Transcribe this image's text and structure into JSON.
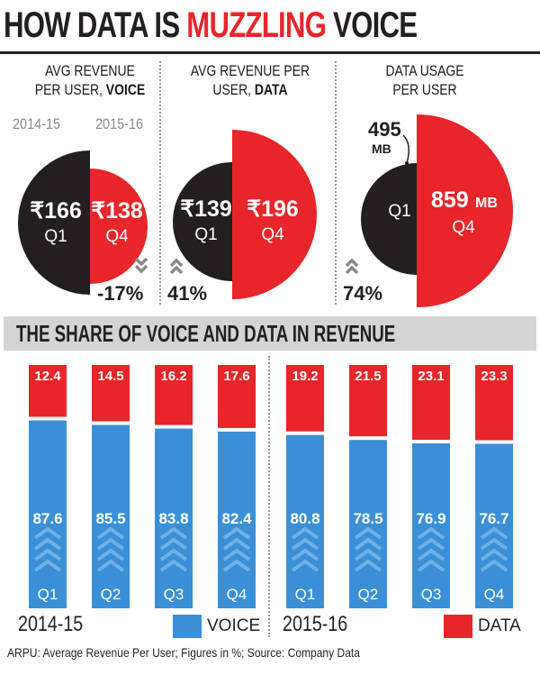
{
  "headline": {
    "part1": "HOW DATA IS ",
    "part2": "MUZZLING",
    "part3": " VOICE"
  },
  "colors": {
    "accent_red": "#e8252b",
    "dark": "#231f20",
    "voice_blue": "#3b8fd6",
    "gray_band": "#d4d4d4"
  },
  "panels": [
    {
      "title_line1": "AVG REVENUE",
      "title_line2a": "PER USER, ",
      "title_line2b": "VOICE",
      "q1_value": "₹166",
      "q1_label": "Q1",
      "q4_value": "₹138",
      "q4_label": "Q4",
      "change": "-17%",
      "direction": "down",
      "year_left": "2014-15",
      "year_right": "2015-16"
    },
    {
      "title_line1": "AVG REVENUE PER",
      "title_line2a": "USER, ",
      "title_line2b": "DATA",
      "q1_value": "₹139",
      "q1_label": "Q1",
      "q4_value": "₹196",
      "q4_label": "Q4",
      "change": "41%",
      "direction": "up"
    },
    {
      "title_line1": "DATA USAGE",
      "title_line2a": "PER USER",
      "title_line2b": "",
      "q1_value": "495",
      "q1_unit": "MB",
      "q1_label": "Q1",
      "q4_value": "859",
      "q4_unit": "MB",
      "q4_label": "Q4",
      "change": "74%",
      "direction": "up"
    }
  ],
  "section_title": "THE SHARE OF VOICE AND DATA IN REVENUE",
  "chart_data": {
    "type": "bar",
    "stacked": true,
    "categories": [
      "Q1",
      "Q2",
      "Q3",
      "Q4",
      "Q1",
      "Q2",
      "Q3",
      "Q4"
    ],
    "groups": [
      "2014-15",
      "2014-15",
      "2014-15",
      "2014-15",
      "2015-16",
      "2015-16",
      "2015-16",
      "2015-16"
    ],
    "series": [
      {
        "name": "VOICE",
        "color": "#3b8fd6",
        "values": [
          87.6,
          85.5,
          83.8,
          82.4,
          80.8,
          78.5,
          76.9,
          76.7
        ]
      },
      {
        "name": "DATA",
        "color": "#e8252b",
        "values": [
          12.4,
          14.5,
          16.2,
          17.6,
          19.2,
          21.5,
          23.1,
          23.3
        ]
      }
    ],
    "ylim": [
      0,
      100
    ],
    "legend": "bottom"
  },
  "bottom": {
    "year_left": "2014-15",
    "year_right": "2015-16",
    "legend_voice": "VOICE",
    "legend_data": "DATA"
  },
  "footnote": "ARPU: Average Revenue Per User; Figures in %; Source: Company Data"
}
